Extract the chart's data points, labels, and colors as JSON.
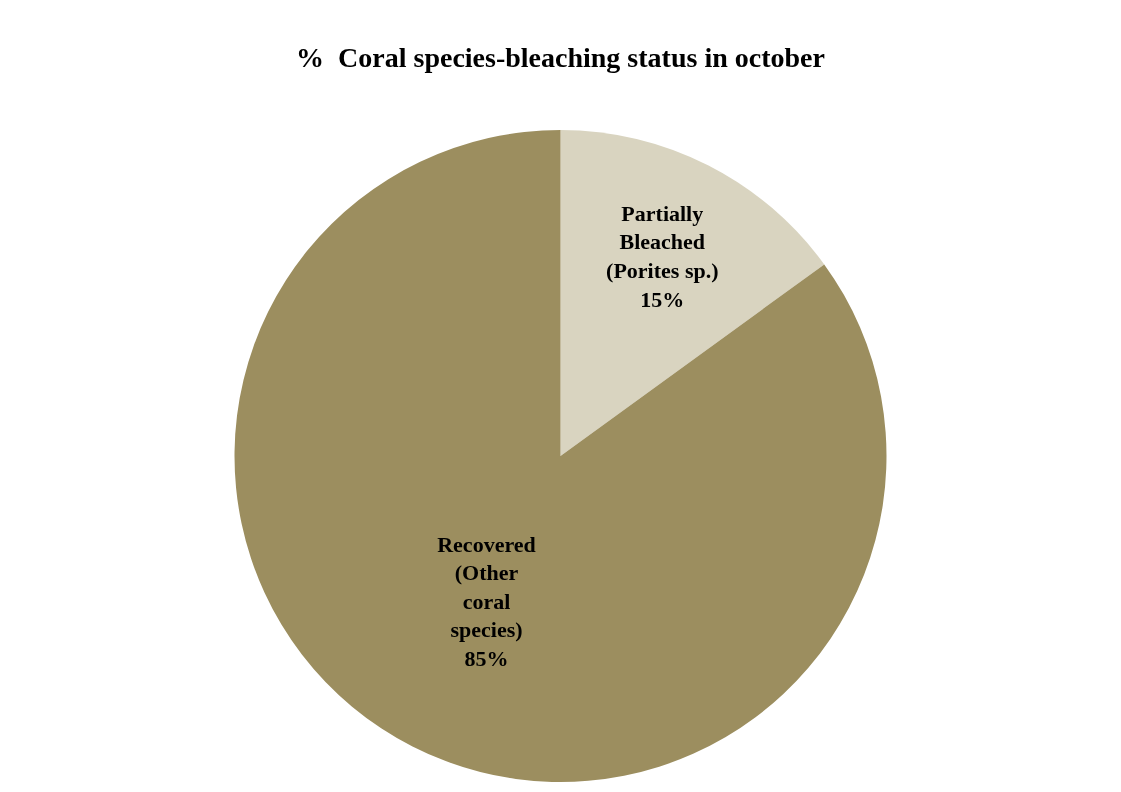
{
  "chart_data": {
    "type": "pie",
    "title": "%  Coral species-bleaching status in october",
    "categories": [
      "Partially\nBleached\n(Porites sp.)",
      "Recovered\n(Other\ncoral\nspecies)"
    ],
    "values": [
      15,
      85
    ],
    "value_labels": [
      "15%",
      "85%"
    ],
    "colors": [
      "#d9d4c0",
      "#9c8e5f"
    ],
    "legend": false
  }
}
